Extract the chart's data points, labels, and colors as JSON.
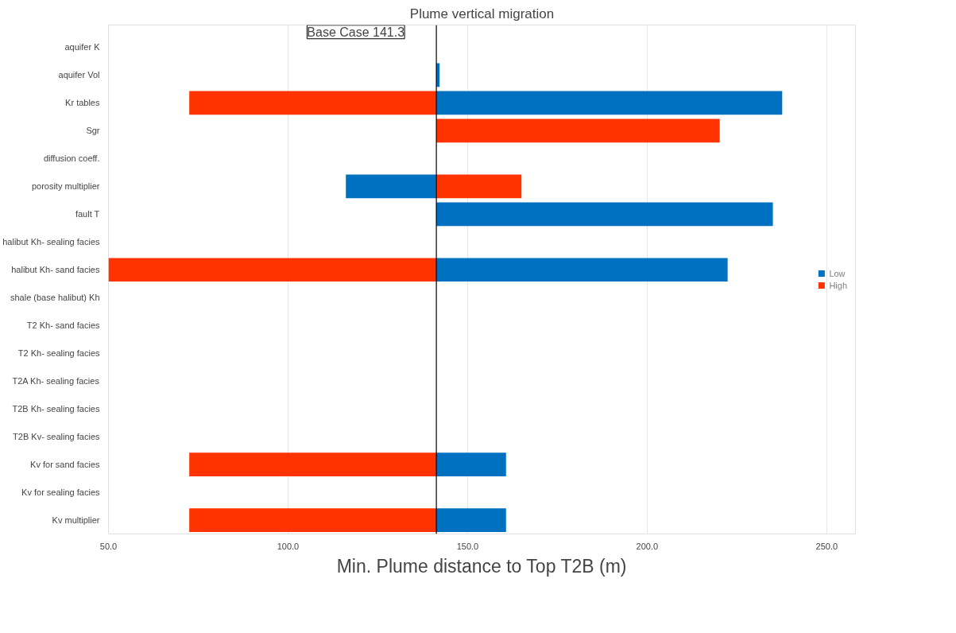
{
  "chart_data": {
    "type": "bar",
    "orientation": "horizontal",
    "title": "Plume vertical migration",
    "xlabel": "Min. Plume distance to Top T2B (m)",
    "categories": [
      "aquifer K",
      "aquifer Vol",
      "Kr tables",
      "Sgr",
      "diffusion coeff.",
      "porosity multiplier",
      "fault T",
      "halibut Kh- sealing facies",
      "halibut Kh- sand facies",
      "shale (base halibut) Kh",
      "T2 Kh- sand facies",
      "T2 Kh- sealing facies",
      "T2A Kh- sealing facies",
      "T2B Kh- sealing facies",
      "T2B Kv- sealing facies",
      "Kv for sand facies",
      "Kv for sealing facies",
      "Kv multiplier"
    ],
    "series": [
      {
        "name": "Low",
        "color": "#0070c0",
        "values": [
          null,
          0.9,
          96.3,
          null,
          null,
          -25.2,
          93.7,
          null,
          81.1,
          null,
          null,
          null,
          null,
          null,
          null,
          19.4,
          null,
          19.4
        ],
        "base": [
          null,
          141.3,
          141.3,
          null,
          null,
          141.3,
          141.3,
          null,
          141.3,
          null,
          null,
          null,
          null,
          null,
          null,
          141.3,
          null,
          141.3
        ]
      },
      {
        "name": "High",
        "color": "#ff3300",
        "values": [
          null,
          null,
          -68.8,
          78.9,
          null,
          23.7,
          null,
          null,
          -91.3,
          null,
          null,
          null,
          null,
          null,
          null,
          -68.8,
          null,
          -68.8
        ],
        "base": [
          null,
          null,
          141.3,
          141.3,
          null,
          141.3,
          null,
          null,
          141.3,
          null,
          null,
          null,
          null,
          null,
          null,
          141.3,
          null,
          141.3
        ]
      }
    ],
    "xlim": [
      50,
      258
    ],
    "xticks": [
      {
        "value": 50,
        "label": "50.0"
      },
      {
        "value": 100,
        "label": "100.0"
      },
      {
        "value": 150,
        "label": "150.0"
      },
      {
        "value": 200,
        "label": "200.0"
      },
      {
        "value": 250,
        "label": "250.0"
      }
    ],
    "ref_lines": [
      {
        "axis": "x",
        "value": 141.3,
        "label": "Base Case 141.3",
        "color": "#000000"
      }
    ],
    "grid": "x",
    "legend": "right"
  }
}
